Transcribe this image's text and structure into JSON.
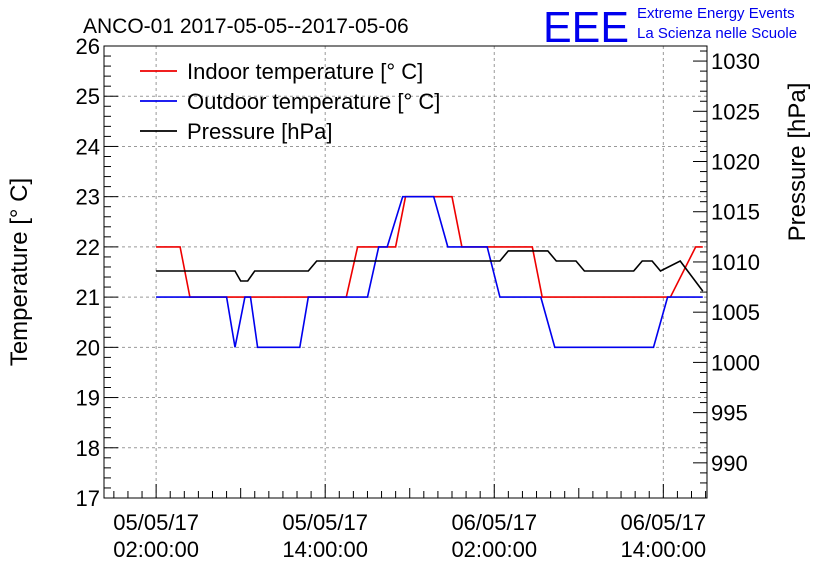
{
  "chart_data": {
    "type": "line",
    "title": "ANCO-01 2017-05-05--2017-05-06",
    "branding": {
      "logo_text": "EEE",
      "line1": "Extreme Energy Events",
      "line2": "La Scienza nelle Scuole",
      "color": "#0000ee"
    },
    "x_axis": {
      "ticks": [
        {
          "hours": 2,
          "line1": "05/05/17",
          "line2": "02:00:00"
        },
        {
          "hours": 14,
          "line1": "05/05/17",
          "line2": "14:00:00"
        },
        {
          "hours": 26,
          "line1": "06/05/17",
          "line2": "02:00:00"
        },
        {
          "hours": 38,
          "line1": "06/05/17",
          "line2": "14:00:00"
        }
      ],
      "range_hours": [
        -1.7,
        41.1
      ]
    },
    "y_left": {
      "label": "Temperature [° C]",
      "ylim": [
        17,
        26
      ],
      "ticks": [
        "17",
        "18",
        "19",
        "20",
        "21",
        "22",
        "23",
        "24",
        "25",
        "26"
      ]
    },
    "y_right": {
      "label": "Pressure [hPa]",
      "ylim": [
        986.5,
        1031.5
      ],
      "ticks": [
        "990",
        "995",
        "1000",
        "1005",
        "1010",
        "1015",
        "1020",
        "1025",
        "1030"
      ]
    },
    "grid": true,
    "legend_position": "top-left",
    "series": [
      {
        "name": "Indoor temperature [° C]",
        "color": "#ee0000",
        "axis": "left",
        "points": [
          [
            2.0,
            22
          ],
          [
            3.7,
            22
          ],
          [
            4.4,
            21
          ],
          [
            15.5,
            21
          ],
          [
            16.3,
            22
          ],
          [
            19.0,
            22
          ],
          [
            19.7,
            23
          ],
          [
            23.0,
            23
          ],
          [
            23.7,
            22
          ],
          [
            28.7,
            22
          ],
          [
            29.4,
            21
          ],
          [
            38.5,
            21
          ],
          [
            40.3,
            22
          ],
          [
            40.8,
            22
          ]
        ]
      },
      {
        "name": "Outdoor temperature [° C]",
        "color": "#0000ee",
        "axis": "left",
        "points": [
          [
            2.0,
            21
          ],
          [
            7.0,
            21
          ],
          [
            7.6,
            20
          ],
          [
            8.3,
            21
          ],
          [
            8.7,
            21
          ],
          [
            9.2,
            20
          ],
          [
            12.2,
            20
          ],
          [
            12.8,
            21
          ],
          [
            17.0,
            21
          ],
          [
            17.8,
            22
          ],
          [
            18.4,
            22
          ],
          [
            19.5,
            23
          ],
          [
            21.7,
            23
          ],
          [
            22.7,
            22
          ],
          [
            25.5,
            22
          ],
          [
            26.4,
            21
          ],
          [
            29.3,
            21
          ],
          [
            30.3,
            20
          ],
          [
            37.3,
            20
          ],
          [
            38.3,
            21
          ],
          [
            40.8,
            21
          ]
        ]
      },
      {
        "name": "Pressure [hPa]",
        "color": "#000000",
        "axis": "right",
        "points": [
          [
            2.0,
            1009.1
          ],
          [
            7.6,
            1009.1
          ],
          [
            8.0,
            1008.1
          ],
          [
            8.5,
            1008.1
          ],
          [
            9.0,
            1009.1
          ],
          [
            12.8,
            1009.1
          ],
          [
            13.4,
            1010.1
          ],
          [
            26.4,
            1010.1
          ],
          [
            27.0,
            1011.1
          ],
          [
            29.8,
            1011.1
          ],
          [
            30.4,
            1010.1
          ],
          [
            31.8,
            1010.1
          ],
          [
            32.4,
            1009.1
          ],
          [
            35.9,
            1009.1
          ],
          [
            36.5,
            1010.1
          ],
          [
            37.2,
            1010.1
          ],
          [
            37.8,
            1009.1
          ],
          [
            39.2,
            1010.1
          ],
          [
            40.8,
            1007.1
          ]
        ]
      }
    ]
  }
}
